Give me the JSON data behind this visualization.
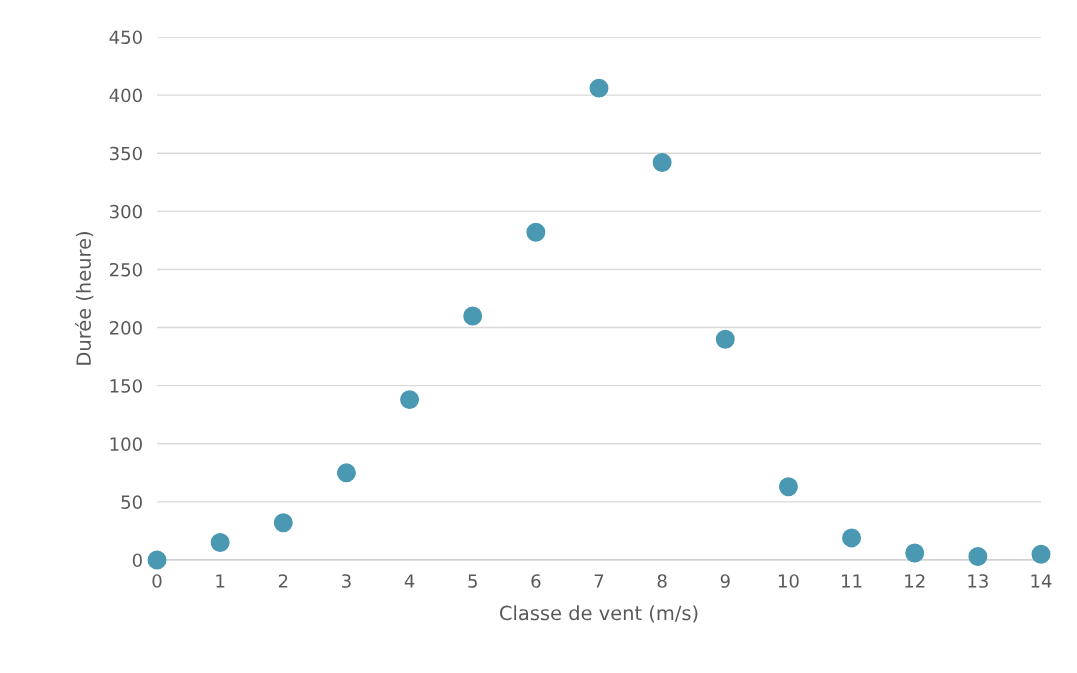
{
  "chart_data": {
    "type": "scatter",
    "xlabel": "Classe de vent (m/s)",
    "ylabel": "Durée (heure)",
    "x": [
      0,
      1,
      2,
      3,
      4,
      5,
      6,
      7,
      8,
      9,
      10,
      11,
      12,
      13,
      14
    ],
    "series": [
      {
        "color": "#4a98b2",
        "values": [
          0,
          15,
          32,
          75,
          138,
          210,
          282,
          406,
          342,
          190,
          63,
          19,
          6,
          3,
          5
        ]
      }
    ],
    "xlim": [
      0,
      14
    ],
    "xticks": [
      0,
      1,
      2,
      3,
      4,
      5,
      6,
      7,
      8,
      9,
      10,
      11,
      12,
      13,
      14
    ],
    "ylim": [
      0,
      450
    ],
    "yticks": [
      0,
      50,
      100,
      150,
      200,
      250,
      300,
      350,
      400,
      450
    ],
    "grid": "y",
    "legend": false
  }
}
